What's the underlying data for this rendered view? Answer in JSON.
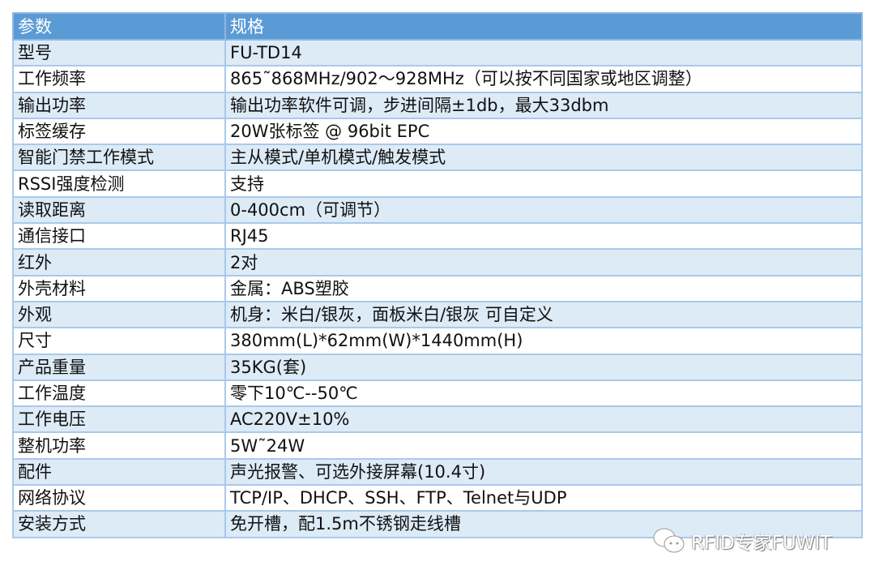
{
  "header": {
    "param": "参数",
    "spec": "规格"
  },
  "rows": [
    {
      "param": "型号",
      "spec": "FU-TD14"
    },
    {
      "param": "工作频率",
      "spec": "865˜868MHz/902～928MHz（可以按不同国家或地区调整）"
    },
    {
      "param": "输出功率",
      "spec": "输出功率软件可调，步进间隔±1db，最大33dbm"
    },
    {
      "param": "标签缓存",
      "spec": "20W张标签 @ 96bit EPC"
    },
    {
      "param": "智能门禁工作模式",
      "spec": "主从模式/单机模式/触发模式"
    },
    {
      "param": "RSSI强度检测",
      "spec": "支持"
    },
    {
      "param": "读取距离",
      "spec": "0-400cm（可调节）"
    },
    {
      "param": "通信接口",
      "spec": "RJ45"
    },
    {
      "param": "红外",
      "spec": "2对"
    },
    {
      "param": "外壳材料",
      "spec": "金属：ABS塑胶"
    },
    {
      "param": "外观",
      "spec": "机身：米白/银灰，面板米白/银灰 可自定义"
    },
    {
      "param": "尺寸",
      "spec": "380mm(L)*62mm(W)*1440mm(H)"
    },
    {
      "param": "产品重量",
      "spec": "35KG(套)"
    },
    {
      "param": "工作温度",
      "spec": "零下10℃--50℃"
    },
    {
      "param": "工作电压",
      "spec": "AC220V±10%"
    },
    {
      "param": "整机功率",
      "spec": "5W˜24W"
    },
    {
      "param": "配件",
      "spec": "声光报警、可选外接屏幕(10.4寸)"
    },
    {
      "param": "网络协议",
      "spec": "TCP/IP、DHCP、SSH、FTP、Telnet与UDP"
    },
    {
      "param": "安装方式",
      "spec": "免开槽，配1.5m不锈钢走线槽"
    }
  ],
  "watermark": {
    "text": "RFID专家FUWIT",
    "icon": "wechat-icon"
  },
  "colors": {
    "header": "#5b9bd5",
    "stripe": "#ddebf7",
    "border": "#a9c9ea"
  }
}
